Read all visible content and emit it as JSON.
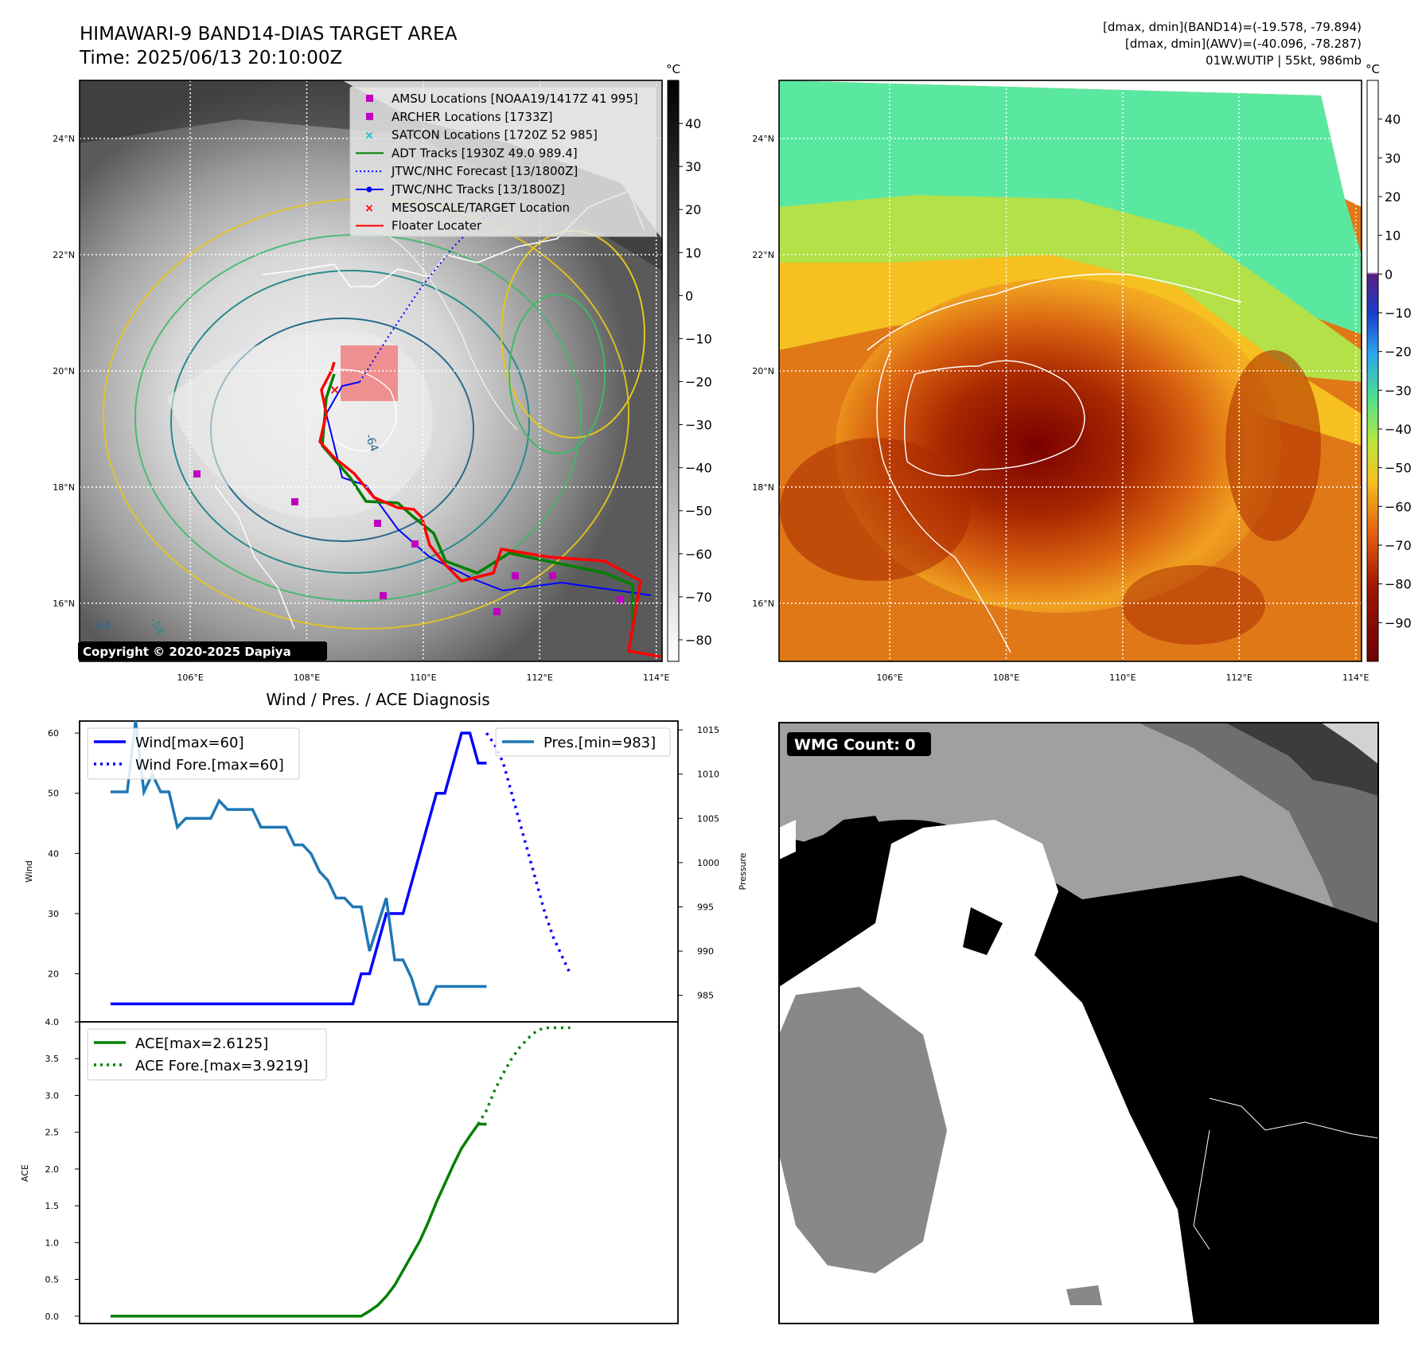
{
  "header": {
    "title": "HIMAWARI-9 BAND14-DIAS TARGET AREA",
    "time": "Time: 2025/06/13 20:10:00Z",
    "stat1": "[dmax, dmin](BAND14)=(-19.578, -79.894)",
    "stat2": "[dmax, dmin](AWV)=(-40.096, -78.287)",
    "storm": "01W.WUTIP | 55kt, 986mb"
  },
  "maps": {
    "lon_ticks": [
      "106°E",
      "108°E",
      "110°E",
      "112°E",
      "114°E"
    ],
    "lat_ticks": [
      "24°N",
      "22°N",
      "20°N",
      "18°N",
      "16°N"
    ],
    "lon_values": [
      106,
      108,
      110,
      112,
      114
    ],
    "lat_values": [
      24,
      22,
      20,
      18,
      16
    ],
    "extent": {
      "lon": [
        104.1,
        114.1
      ],
      "lat": [
        15.0,
        25.0
      ]
    },
    "unit": "°C",
    "copyright": "Copyright © 2020-2025 Dapiya",
    "contour_labels": [
      "-64",
      "-64",
      "-54"
    ]
  },
  "legend_items": [
    {
      "label": "AMSU Locations [NOAA19/1417Z 41 995]",
      "icon": "square",
      "color": "#c000c0"
    },
    {
      "label": "ARCHER Locations [1733Z]",
      "icon": "square",
      "color": "#c000c0"
    },
    {
      "label": "SATCON Locations [1720Z 52 985]",
      "icon": "x-marker",
      "color": "#17becf"
    },
    {
      "label": "ADT Tracks [1930Z 49.0 989.4]",
      "icon": "line",
      "color": "#008000"
    },
    {
      "label": "JTWC/NHC Forecast [13/1800Z]",
      "icon": "dotted-line",
      "color": "#0000ff"
    },
    {
      "label": "JTWC/NHC Tracks [13/1800Z]",
      "icon": "line-dot",
      "color": "#0000ff"
    },
    {
      "label": "MESOSCALE/TARGET Location",
      "icon": "x-marker",
      "color": "#ff0000"
    },
    {
      "label": "Floater Locater",
      "icon": "line",
      "color": "#ff0000"
    }
  ],
  "colorbar_ir": {
    "ticks": [
      "40",
      "30",
      "20",
      "10",
      "0",
      "−10",
      "−20",
      "−30",
      "−40",
      "−50",
      "−60",
      "−70",
      "−80"
    ],
    "values": [
      40,
      30,
      20,
      10,
      0,
      -10,
      -20,
      -30,
      -40,
      -50,
      -60,
      -70,
      -80
    ],
    "range": [
      -85,
      50
    ]
  },
  "colorbar_awv": {
    "ticks": [
      "40",
      "30",
      "20",
      "10",
      "0",
      "−10",
      "−20",
      "−30",
      "−40",
      "−50",
      "−60",
      "−70",
      "−80",
      "−90"
    ],
    "values": [
      40,
      30,
      20,
      10,
      0,
      -10,
      -20,
      -30,
      -40,
      -50,
      -60,
      -70,
      -80,
      -90
    ],
    "range": [
      -100,
      50
    ]
  },
  "wmg": {
    "label": "WMG Count: 0"
  },
  "colors": {
    "wind": "#0000ff",
    "pres": "#1f77b4",
    "ace": "#008000",
    "floater": "#ff0000"
  },
  "chart_data": [
    {
      "type": "line",
      "title": "Wind / Pres. / ACE Diagnosis",
      "ylabel": "Wind",
      "ylabel2": "Pressure",
      "ylim": [
        12,
        62
      ],
      "ylim2": [
        982,
        1016
      ],
      "yticks": [
        "60",
        "50",
        "40",
        "30",
        "20"
      ],
      "yticks2": [
        "1015",
        "1010",
        "1005",
        "1000",
        "995",
        "990",
        "985"
      ],
      "series": [
        {
          "name": "Wind[max=60]",
          "axis": "left",
          "style": "solid",
          "color": "#0000ff",
          "x": [
            0,
            1,
            2,
            3,
            4,
            5,
            6,
            7,
            8,
            9,
            10,
            11,
            12,
            13,
            14,
            15,
            16,
            17,
            18,
            19,
            20,
            21,
            22,
            23,
            24,
            25,
            26,
            27,
            28,
            29,
            30,
            31,
            32,
            33,
            34,
            35,
            36,
            37,
            38,
            39,
            40,
            41
          ],
          "y": [
            15,
            15,
            15,
            15,
            15,
            15,
            15,
            15,
            15,
            15,
            15,
            15,
            15,
            15,
            15,
            15,
            15,
            15,
            15,
            15,
            15,
            15,
            15,
            15,
            15,
            15,
            15,
            15,
            15,
            15,
            20,
            20,
            25,
            30,
            30,
            30,
            35,
            40,
            45,
            50,
            50,
            55
          ]
        },
        {
          "name": "Wind[max=60] tail",
          "axis": "left",
          "style": "solid",
          "color": "#0000ff",
          "x": [
            41,
            42,
            43,
            44,
            45
          ],
          "y": [
            55,
            60,
            60,
            55,
            55
          ]
        },
        {
          "name": "Wind Fore.[max=60]",
          "axis": "left",
          "style": "dotted",
          "color": "#0000ff",
          "x": [
            45,
            46,
            47,
            48,
            49,
            50,
            51,
            52,
            53,
            54,
            55
          ],
          "y": [
            60,
            58,
            55,
            50,
            45,
            40,
            35,
            30,
            26,
            23,
            20
          ]
        },
        {
          "name": "Pres.[min=983]",
          "axis": "right",
          "style": "solid",
          "color": "#1f77b4",
          "x": [
            0,
            1,
            2,
            3,
            4,
            5,
            6,
            7,
            8,
            9,
            10,
            11,
            12,
            13,
            14,
            15,
            16,
            17,
            18,
            19,
            20,
            21,
            22,
            23,
            24,
            25,
            26,
            27,
            28,
            29,
            30,
            31,
            32,
            33,
            34,
            35,
            36,
            37,
            38,
            39,
            40,
            41,
            42,
            43,
            44,
            45
          ],
          "y": [
            1008,
            1008,
            1008,
            1016,
            1008,
            1010,
            1008,
            1008,
            1004,
            1005,
            1005,
            1005,
            1005,
            1007,
            1006,
            1006,
            1006,
            1006,
            1004,
            1004,
            1004,
            1004,
            1002,
            1002,
            1001,
            999,
            998,
            996,
            996,
            995,
            995,
            990,
            993,
            996,
            989,
            989,
            987,
            984,
            984,
            986,
            986,
            986,
            986,
            986,
            986,
            986
          ]
        }
      ]
    },
    {
      "type": "line",
      "ylabel": "ACE",
      "ylim": [
        -0.1,
        4.0
      ],
      "yticks": [
        "4.0",
        "3.5",
        "3.0",
        "2.5",
        "2.0",
        "1.5",
        "1.0",
        "0.5",
        "0.0"
      ],
      "series": [
        {
          "name": "ACE[max=2.6125]",
          "style": "solid",
          "color": "#008000",
          "x": [
            0,
            2,
            4,
            6,
            8,
            10,
            12,
            14,
            16,
            18,
            20,
            22,
            24,
            26,
            28,
            30,
            31,
            32,
            33,
            34,
            35,
            36,
            37,
            38,
            39,
            40,
            41,
            42,
            43,
            44,
            45
          ],
          "y": [
            0,
            0,
            0,
            0,
            0,
            0,
            0,
            0,
            0,
            0,
            0,
            0,
            0,
            0,
            0,
            0,
            0.07,
            0.15,
            0.27,
            0.42,
            0.62,
            0.82,
            1.02,
            1.27,
            1.55,
            1.8,
            2.05,
            2.28,
            2.45,
            2.61,
            2.61
          ]
        },
        {
          "name": "ACE Fore.[max=3.9219]",
          "style": "dotted",
          "color": "#008000",
          "x": [
            44,
            45,
            46,
            47,
            48,
            49,
            50,
            51,
            52,
            53,
            54,
            55
          ],
          "y": [
            2.61,
            2.8,
            3.08,
            3.3,
            3.5,
            3.66,
            3.78,
            3.88,
            3.92,
            3.92,
            3.92,
            3.92
          ]
        }
      ]
    }
  ]
}
